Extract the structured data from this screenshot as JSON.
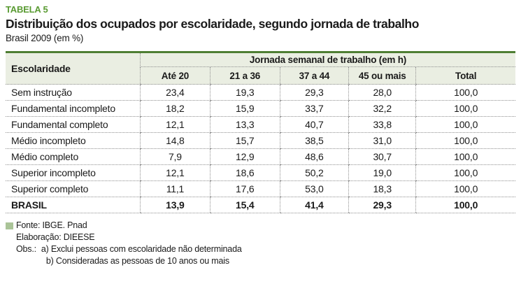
{
  "header": {
    "tag": "TABELA 5",
    "title": "Distribuição dos ocupados por escolaridade, segundo jornada de trabalho",
    "subtitle": "Brasil 2009 (em %)"
  },
  "chart_data": {
    "type": "table",
    "title": "Distribuição dos ocupados por escolaridade, segundo jornada de trabalho",
    "subtitle": "Brasil 2009 (em %)",
    "row_dimension": "Escolaridade",
    "column_group": "Jornada semanal de trabalho (em h)",
    "columns": [
      "Até 20",
      "21 a 36",
      "37 a 44",
      "45 ou mais",
      "Total"
    ],
    "rows": [
      {
        "label": "Sem instrução",
        "values": [
          "23,4",
          "19,3",
          "29,3",
          "28,0",
          "100,0"
        ]
      },
      {
        "label": "Fundamental incompleto",
        "values": [
          "18,2",
          "15,9",
          "33,7",
          "32,2",
          "100,0"
        ]
      },
      {
        "label": "Fundamental completo",
        "values": [
          "12,1",
          "13,3",
          "40,7",
          "33,8",
          "100,0"
        ]
      },
      {
        "label": "Médio incompleto",
        "values": [
          "14,8",
          "15,7",
          "38,5",
          "31,0",
          "100,0"
        ]
      },
      {
        "label": "Médio completo",
        "values": [
          "7,9",
          "12,9",
          "48,6",
          "30,7",
          "100,0"
        ]
      },
      {
        "label": "Superior incompleto",
        "values": [
          "12,1",
          "18,6",
          "50,2",
          "19,0",
          "100,0"
        ]
      },
      {
        "label": "Superior completo",
        "values": [
          "11,1",
          "17,6",
          "53,0",
          "18,3",
          "100,0"
        ]
      }
    ],
    "total_row": {
      "label": "BRASIL",
      "values": [
        "13,9",
        "15,4",
        "41,4",
        "29,3",
        "100,0"
      ]
    }
  },
  "footer": {
    "source": "Fonte: IBGE. Pnad",
    "elaboration": "Elaboração: DIEESE",
    "obs_label": "Obs.:",
    "obs_items": [
      "a) Exclui pessoas com escolaridade não determinada",
      "b) Consideradas as pessoas de 10 anos ou mais"
    ]
  },
  "colors": {
    "accent_green": "#5a9b33",
    "table_top_border": "#4e7e33",
    "header_bg": "#eaeee2",
    "bullet_green": "#aac498",
    "dotted_line": "#8f8f8f",
    "text": "#1a1a1a"
  }
}
